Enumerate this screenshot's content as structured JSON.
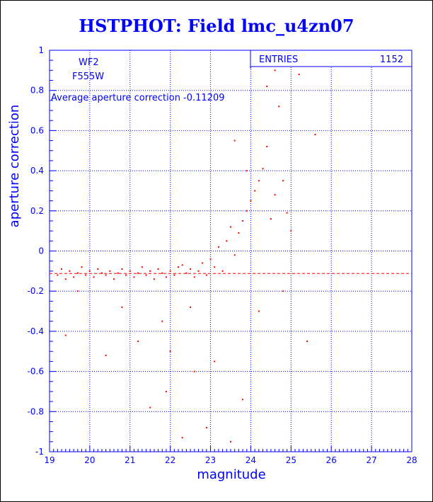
{
  "chart_data": {
    "type": "scatter",
    "title": "HSTPHOT: Field lmc_u4zn07",
    "xlabel": "magnitude",
    "ylabel": "aperture correction",
    "xlim": [
      19,
      28
    ],
    "ylim": [
      -1,
      1
    ],
    "x_ticks": [
      "19",
      "20",
      "21",
      "22",
      "23",
      "24",
      "25",
      "26",
      "27",
      "28"
    ],
    "y_ticks": [
      "-1",
      "-0.8",
      "-0.6",
      "-0.4",
      "-0.2",
      "0",
      "0.2",
      "0.4",
      "0.6",
      "0.8",
      "1"
    ],
    "grid": true,
    "annotations": {
      "camera": "WF2",
      "filter": "F555W",
      "average": "Average aperture correction -0.11209"
    },
    "stats_box": {
      "label": "ENTRIES",
      "value": "1152"
    },
    "reference_line": {
      "y": -0.11209,
      "style": "dashed"
    },
    "colors": {
      "text": "#0000ff",
      "axes": "#0000ff",
      "grid": "#0000ff",
      "points": "#ff0000",
      "ref_line": "#ff0000"
    },
    "points_summary": "1152 points; dense band near -0.11 from 19.2 to 23.3; upward spread from 23 to 25.3",
    "points": [
      [
        19.2,
        -0.12
      ],
      [
        19.3,
        -0.09
      ],
      [
        19.4,
        -0.14
      ],
      [
        19.5,
        -0.1
      ],
      [
        19.6,
        -0.13
      ],
      [
        19.7,
        -0.11
      ],
      [
        19.8,
        -0.08
      ],
      [
        19.9,
        -0.12
      ],
      [
        20.0,
        -0.1
      ],
      [
        20.1,
        -0.13
      ],
      [
        20.2,
        -0.09
      ],
      [
        20.3,
        -0.11
      ],
      [
        20.4,
        -0.12
      ],
      [
        20.5,
        -0.1
      ],
      [
        20.6,
        -0.14
      ],
      [
        20.7,
        -0.11
      ],
      [
        20.8,
        -0.09
      ],
      [
        20.9,
        -0.12
      ],
      [
        21.0,
        -0.1
      ],
      [
        21.1,
        -0.13
      ],
      [
        21.2,
        -0.11
      ],
      [
        21.3,
        -0.08
      ],
      [
        21.4,
        -0.12
      ],
      [
        21.5,
        -0.1
      ],
      [
        21.6,
        -0.14
      ],
      [
        21.7,
        -0.09
      ],
      [
        21.8,
        -0.11
      ],
      [
        21.9,
        -0.13
      ],
      [
        22.0,
        -0.1
      ],
      [
        22.1,
        -0.12
      ],
      [
        22.2,
        -0.08
      ],
      [
        22.3,
        -0.07
      ],
      [
        22.4,
        -0.11
      ],
      [
        22.5,
        -0.09
      ],
      [
        22.6,
        -0.13
      ],
      [
        22.7,
        -0.1
      ],
      [
        22.8,
        -0.06
      ],
      [
        22.9,
        -0.12
      ],
      [
        23.0,
        -0.04
      ],
      [
        23.1,
        -0.08
      ],
      [
        23.2,
        0.02
      ],
      [
        23.3,
        -0.1
      ],
      [
        23.4,
        0.05
      ],
      [
        23.5,
        0.12
      ],
      [
        23.6,
        -0.02
      ],
      [
        23.7,
        0.09
      ],
      [
        23.8,
        0.15
      ],
      [
        23.9,
        0.2
      ],
      [
        24.0,
        0.25
      ],
      [
        24.1,
        0.3
      ],
      [
        24.2,
        0.35
      ],
      [
        24.3,
        0.41
      ],
      [
        24.4,
        0.52
      ],
      [
        24.5,
        0.16
      ],
      [
        24.6,
        0.28
      ],
      [
        24.7,
        0.72
      ],
      [
        24.8,
        0.35
      ],
      [
        24.9,
        0.19
      ],
      [
        25.0,
        0.1
      ],
      [
        25.2,
        0.88
      ],
      [
        25.4,
        -0.45
      ],
      [
        25.6,
        0.58
      ],
      [
        24.6,
        0.9
      ],
      [
        23.6,
        0.55
      ],
      [
        23.9,
        0.4
      ],
      [
        24.2,
        -0.3
      ],
      [
        24.4,
        0.82
      ],
      [
        24.8,
        -0.2
      ],
      [
        22.0,
        -0.5
      ],
      [
        22.3,
        -0.93
      ],
      [
        23.5,
        -0.95
      ],
      [
        21.5,
        -0.78
      ],
      [
        21.9,
        -0.7
      ],
      [
        22.6,
        -0.6
      ],
      [
        23.1,
        -0.55
      ],
      [
        22.5,
        -0.28
      ],
      [
        21.8,
        -0.35
      ],
      [
        20.4,
        -0.52
      ],
      [
        20.8,
        -0.28
      ],
      [
        19.4,
        -0.42
      ],
      [
        19.7,
        -0.2
      ],
      [
        21.2,
        -0.45
      ],
      [
        22.9,
        -0.88
      ],
      [
        23.8,
        -0.74
      ]
    ]
  }
}
